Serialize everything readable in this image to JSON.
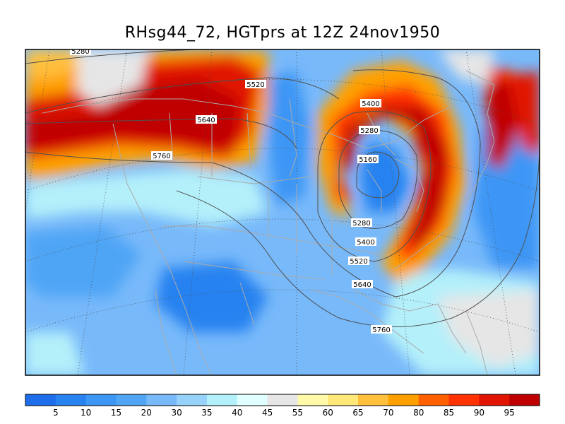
{
  "title": "RHsg44_72, HGTprs at 12Z  24nov1950",
  "contour_labels": [
    "5280",
    "5520",
    "5640",
    "5760",
    "5400",
    "5280",
    "5160",
    "5280",
    "5400",
    "5520",
    "5640",
    "5760"
  ],
  "colorbar": {
    "labels": [
      "5",
      "10",
      "15",
      "20",
      "30",
      "35",
      "40",
      "45",
      "55",
      "60",
      "65",
      "70",
      "80",
      "85",
      "90",
      "95"
    ],
    "colors": [
      "#1e6eeb",
      "#2882f0",
      "#3c96f5",
      "#50a5f5",
      "#78b9fa",
      "#96d2fa",
      "#b4f0fa",
      "#e1ffff",
      "#e6e6e6",
      "#fffaaa",
      "#ffe878",
      "#ffc03c",
      "#ffa000",
      "#ff6000",
      "#ff3200",
      "#e11400",
      "#c00000"
    ]
  },
  "colors": {
    "frame": "#000000",
    "geography": "#aaaaaa",
    "contour": "#505050"
  }
}
